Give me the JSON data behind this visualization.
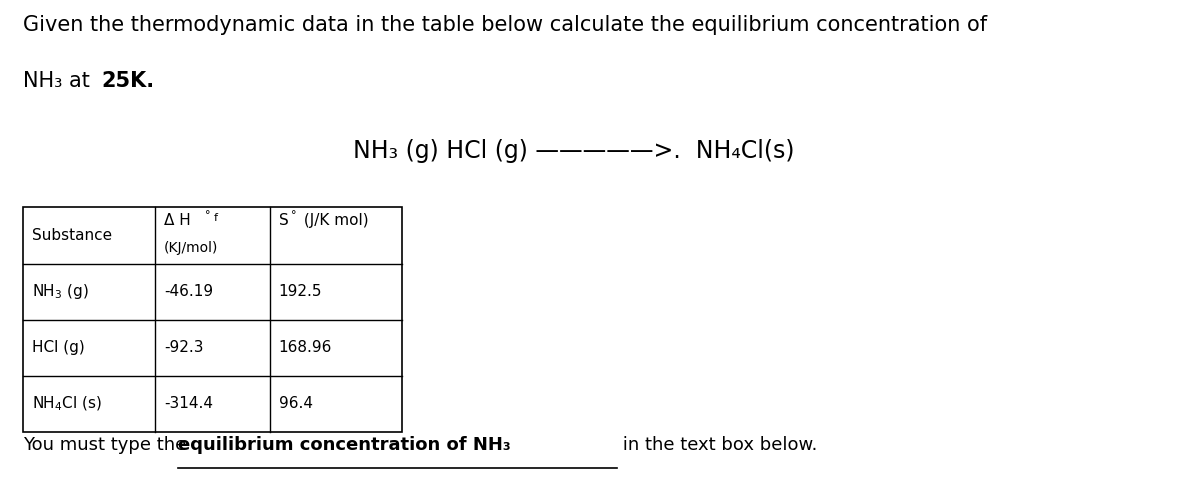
{
  "title_line1": "Given the thermodynamic data in the table below calculate the equilibrium concentration of",
  "title_line2_normal": "NH₃ at ",
  "title_line2_bold": "25K.",
  "reaction_text": "NH₃ (g) HCl (g) —————>.  NH₄Cl(s)",
  "table_rows": [
    [
      "NH₃ (g)",
      "-46.19",
      "192.5"
    ],
    [
      "HCl (g)",
      "-92.3",
      "168.96"
    ],
    [
      "NH₄Cl (s)",
      "-314.4",
      "96.4"
    ]
  ],
  "footer_plain1": "You must type the ",
  "footer_underline": "equilibrium concentration of NH₃",
  "footer_plain2": " in the text box below.",
  "bg_color": "#ffffff",
  "text_color": "#000000",
  "font_size_title": 15,
  "font_size_reaction": 17,
  "font_size_table": 12,
  "font_size_footer": 13
}
